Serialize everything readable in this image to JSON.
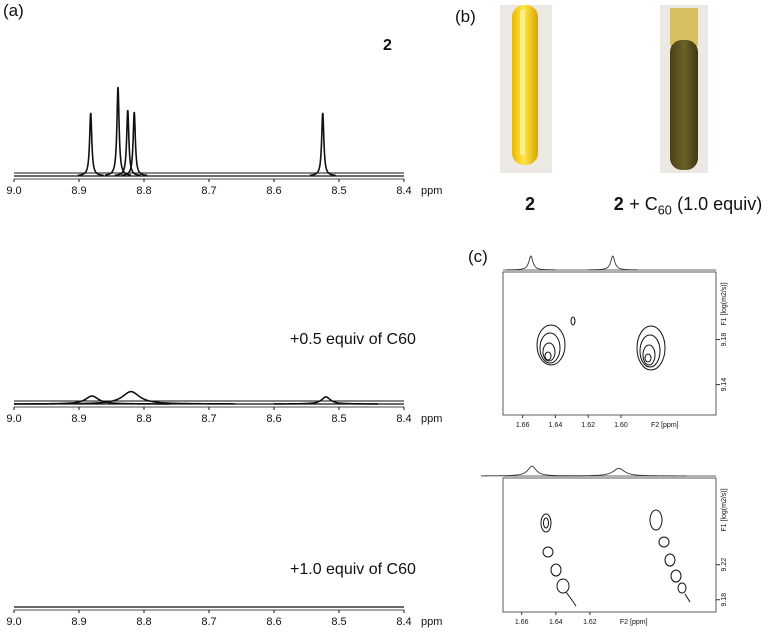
{
  "panel_labels": [
    "(a)",
    "(b)",
    "(c)"
  ],
  "photo_captions": [
    {
      "bold": "2"
    },
    {
      "bold": "2",
      "text": "+ C",
      "sub": "60",
      "tail": "(1.0 equiv)"
    }
  ],
  "chart_data": [
    {
      "type": "spectrum",
      "label": {
        "bold": "2"
      },
      "xlim": [
        9.0,
        8.4
      ],
      "xticks": [
        {
          "value": 9.0,
          "label": "9.0"
        },
        8.9,
        8.8,
        8.7,
        8.6,
        8.5,
        8.4
      ],
      "xlabel": "ppm",
      "peaks": {
        "x": [
          8.882,
          8.84,
          8.825,
          8.815,
          8.525
        ],
        "intensity": [
          71,
          100,
          74,
          72,
          71
        ],
        "linewidth": [
          0.002,
          0.002,
          0.002,
          0.002,
          0.002
        ]
      }
    },
    {
      "type": "spectrum",
      "label": {
        "text": "+0.5 equiv of C",
        "sub": "60"
      },
      "xlim": [
        9.0,
        8.4
      ],
      "xticks": [
        {
          "value": 9.0,
          "label": "9.0"
        },
        8.9,
        8.8,
        8.7,
        8.6,
        8.5,
        8.4
      ],
      "xlabel": "ppm",
      "peaks": {
        "x": [
          8.88,
          8.82,
          8.52
        ],
        "intensity": [
          9,
          14,
          8
        ],
        "linewidth": [
          0.012,
          0.016,
          0.008
        ]
      }
    },
    {
      "type": "spectrum",
      "label": {
        "text": "+1.0 equiv of C",
        "sub": "60"
      },
      "xlim": [
        9.0,
        8.4
      ],
      "xticks": [
        {
          "value": 9.0,
          "label": "9.0"
        },
        8.9,
        8.8,
        8.7,
        8.6,
        8.5,
        8.4
      ],
      "xlabel": "ppm",
      "peaks": {
        "x": [],
        "intensity": [],
        "linewidth": []
      }
    },
    {
      "type": "dosy",
      "xlim": [
        1.672,
        1.542
      ],
      "xticks": [
        1.66,
        1.64,
        1.62,
        {
          "value": 1.6,
          "label": "1.60"
        }
      ],
      "xlabel": "F2 [ppm]",
      "ylim": [
        9.113,
        9.24
      ],
      "yticks": [
        9.14,
        9.18
      ],
      "ylabel": "F1 [log(m2/s)]",
      "projection": {
        "x": [
          1.655,
          1.605
        ],
        "intensity": [
          100,
          100
        ],
        "linewidth": [
          0.0015,
          0.0015
        ]
      }
    },
    {
      "type": "dosy",
      "xlim": [
        1.671,
        1.546
      ],
      "xticks": [
        1.66,
        1.64,
        1.62
      ],
      "xlabel": "F2 [ppm]",
      "ylim": [
        9.166,
        9.319
      ],
      "yticks": [
        9.18,
        9.22
      ],
      "ylabel": "F1 [log(m2/s)]",
      "projection": {
        "x": [
          1.654,
          1.603
        ],
        "intensity": [
          70,
          55
        ],
        "linewidth": [
          0.003,
          0.004
        ]
      }
    }
  ]
}
